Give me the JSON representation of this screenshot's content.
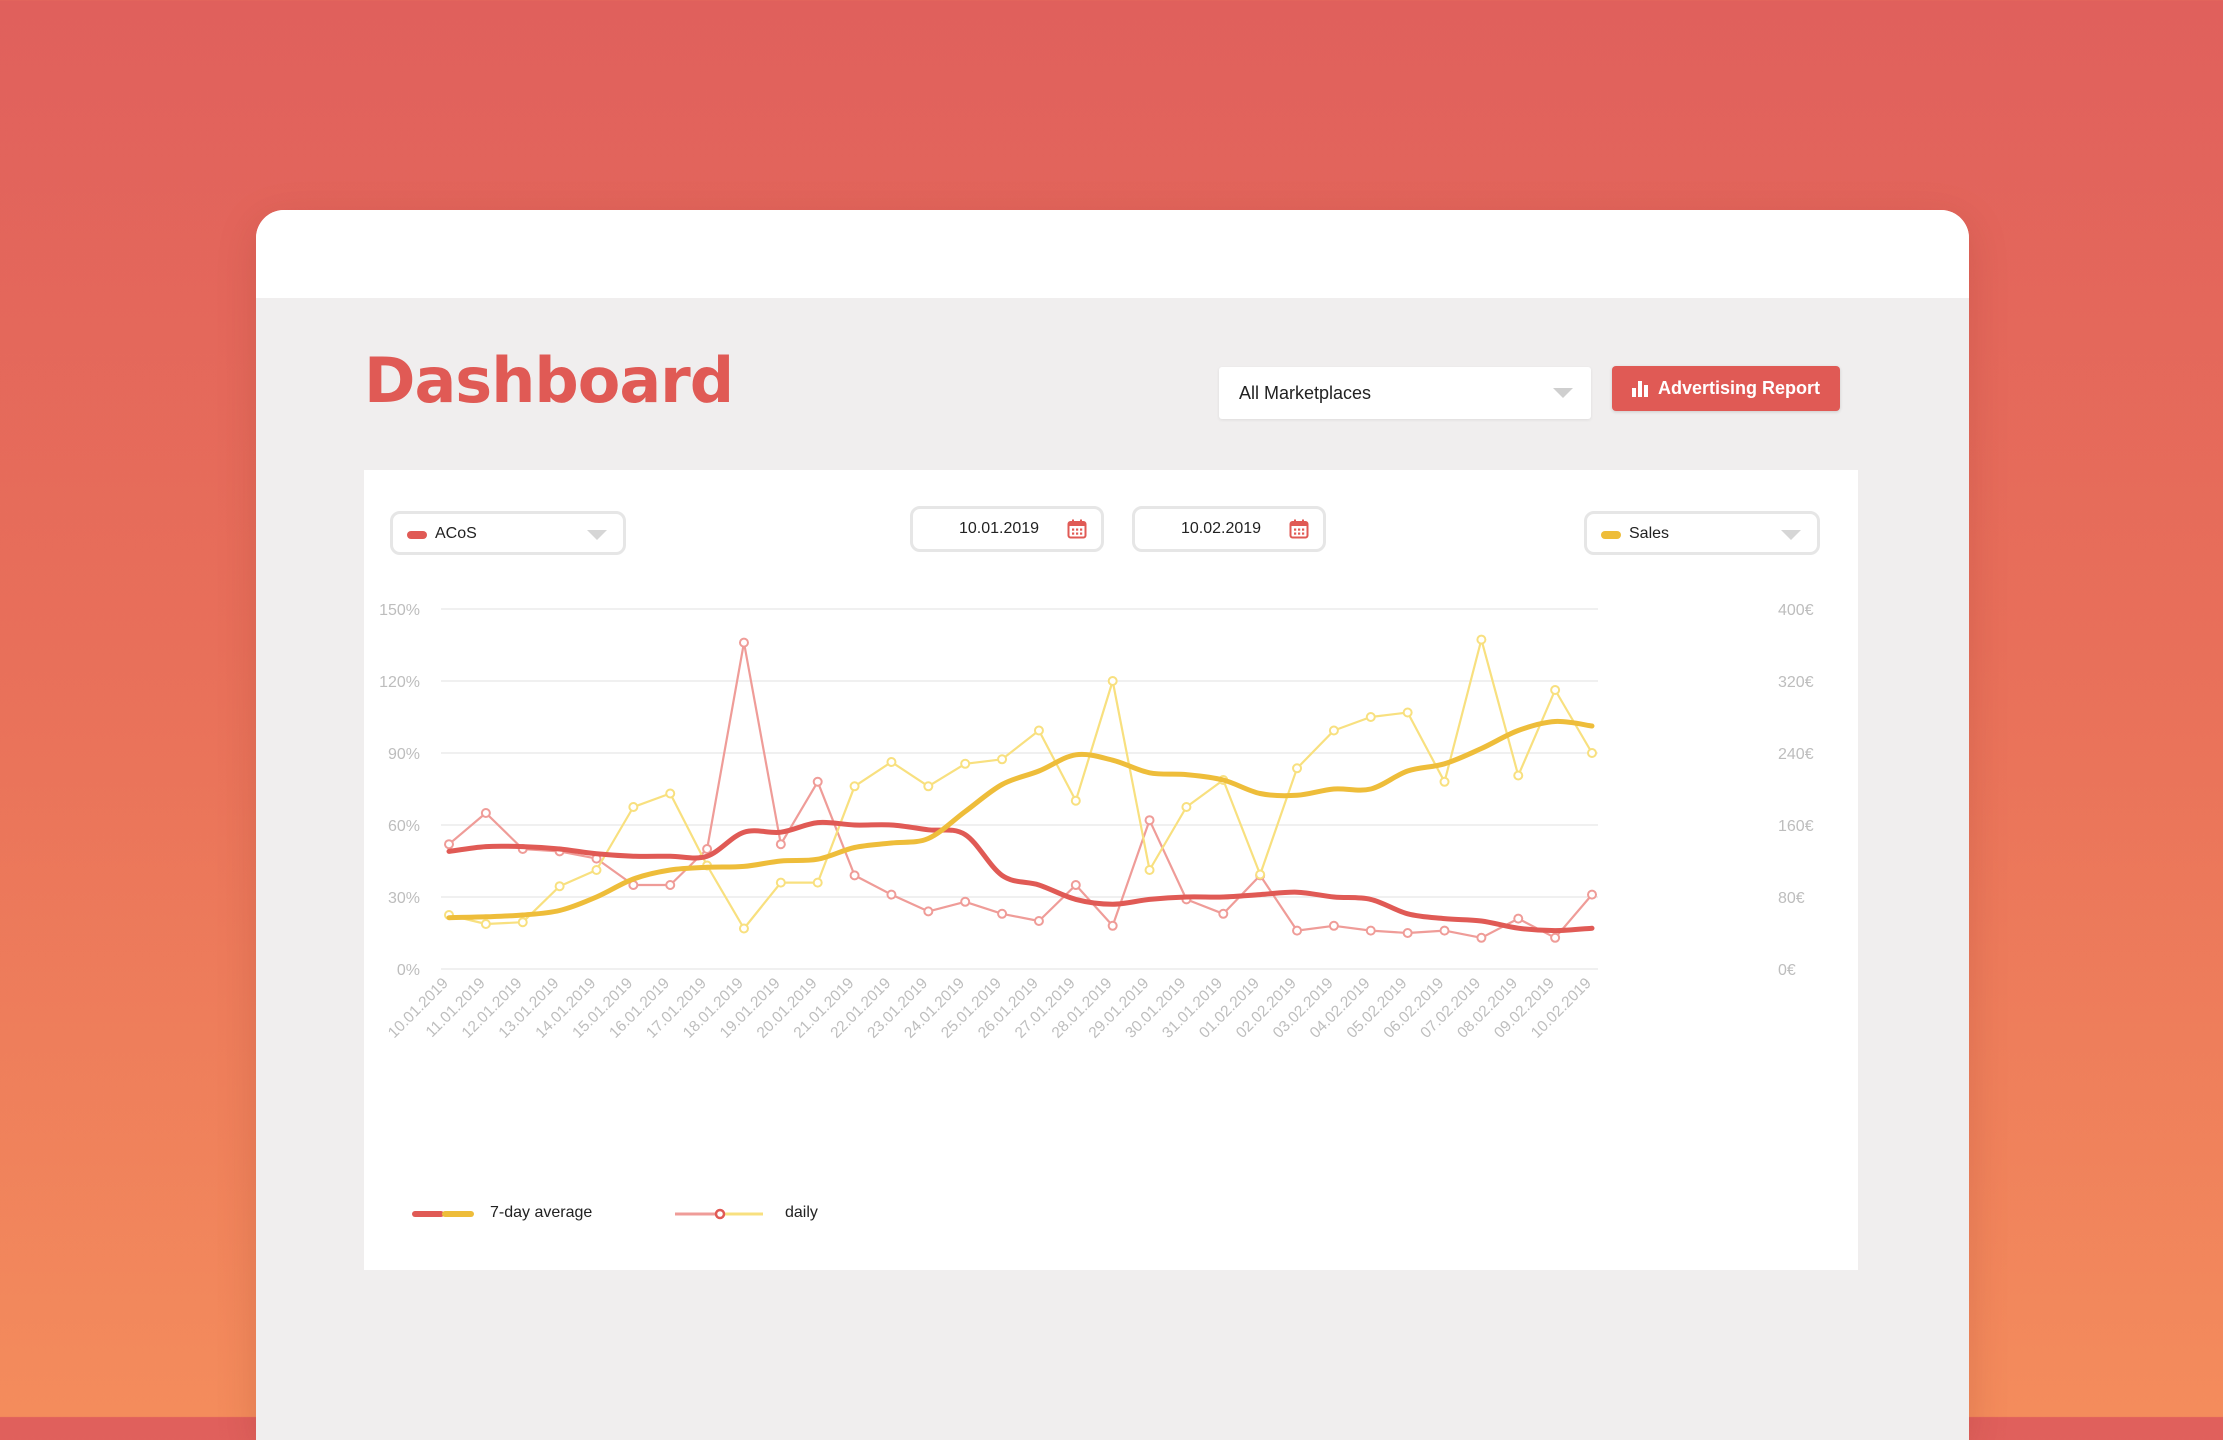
{
  "header": {
    "title": "Dashboard",
    "marketplace_select": {
      "value": "All Marketplaces"
    },
    "report_button": {
      "label": "Advertising Report",
      "icon": "bar-chart-icon"
    }
  },
  "controls": {
    "left_metric": {
      "label": "ACoS",
      "color": "#e05a55"
    },
    "right_metric": {
      "label": "Sales",
      "color": "#eebd3a"
    },
    "date_from": "10.01.2019",
    "date_to": "10.02.2019",
    "calendar_icon": "calendar-icon"
  },
  "legend": {
    "average": "7-day average",
    "daily": "daily"
  },
  "colors": {
    "acos": "#e05a55",
    "acos_light": "#ef9c98",
    "sales": "#eebd3a",
    "sales_light": "#f8e07f",
    "grid": "#ececec",
    "tick": "#bdbdbd"
  },
  "chart_data": {
    "type": "line",
    "x": [
      "10.01.2019",
      "11.01.2019",
      "12.01.2019",
      "13.01.2019",
      "14.01.2019",
      "15.01.2019",
      "16.01.2019",
      "17.01.2019",
      "18.01.2019",
      "19.01.2019",
      "20.01.2019",
      "21.01.2019",
      "22.01.2019",
      "23.01.2019",
      "24.01.2019",
      "25.01.2019",
      "26.01.2019",
      "27.01.2019",
      "28.01.2019",
      "29.01.2019",
      "30.01.2019",
      "31.01.2019",
      "01.02.2019",
      "02.02.2019",
      "03.02.2019",
      "04.02.2019",
      "05.02.2019",
      "06.02.2019",
      "07.02.2019",
      "08.02.2019",
      "09.02.2019",
      "10.02.2019"
    ],
    "y_left": {
      "ticks": [
        "0%",
        "30%",
        "60%",
        "90%",
        "120%",
        "150%"
      ],
      "min": 0,
      "max": 150
    },
    "y_right": {
      "ticks": [
        "0€",
        "80€",
        "160€",
        "240€",
        "320€",
        "400€"
      ],
      "min": 0,
      "max": 400
    },
    "series": [
      {
        "name": "ACoS",
        "axis": "left",
        "kind": "daily",
        "values": [
          52,
          65,
          50,
          49,
          46,
          35,
          35,
          50,
          136,
          52,
          78,
          39,
          31,
          24,
          28,
          23,
          20,
          35,
          18,
          62,
          29,
          23,
          39,
          16,
          18,
          16,
          15,
          16,
          13,
          21,
          13,
          31
        ]
      },
      {
        "name": "ACoS",
        "axis": "left",
        "kind": "7-day average",
        "values": [
          49,
          51,
          51,
          50,
          48,
          47,
          47,
          47,
          57,
          57,
          61,
          60,
          60,
          58,
          56,
          39,
          35,
          29,
          27,
          29,
          30,
          30,
          31,
          32,
          30,
          29,
          23,
          21,
          20,
          17,
          16,
          17
        ]
      },
      {
        "name": "Sales",
        "axis": "right",
        "kind": "daily",
        "values": [
          60,
          50,
          52,
          92,
          110,
          180,
          195,
          115,
          45,
          96,
          96,
          203,
          230,
          203,
          228,
          233,
          265,
          187,
          320,
          110,
          180,
          210,
          105,
          223,
          265,
          280,
          285,
          208,
          366,
          215,
          310,
          240
        ]
      },
      {
        "name": "Sales",
        "axis": "right",
        "kind": "7-day average",
        "values": [
          57,
          58,
          60,
          65,
          80,
          100,
          110,
          113,
          114,
          120,
          122,
          135,
          140,
          145,
          175,
          205,
          220,
          238,
          232,
          218,
          216,
          210,
          195,
          193,
          200,
          200,
          220,
          228,
          245,
          265,
          275,
          270
        ]
      }
    ]
  }
}
